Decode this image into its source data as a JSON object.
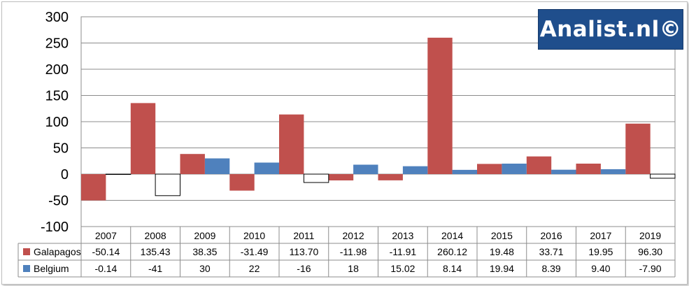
{
  "logo": {
    "text": "Analist.nl©"
  },
  "chart_data": {
    "type": "bar",
    "title": "",
    "xlabel": "",
    "ylabel": "",
    "categories": [
      "2007",
      "2008",
      "2009",
      "2010",
      "2011",
      "2012",
      "2013",
      "2014",
      "2015",
      "2016",
      "2017",
      "2019"
    ],
    "series": [
      {
        "name": "Galapagos",
        "color": "#c0504d",
        "values": [
          -50.14,
          135.43,
          38.35,
          -31.49,
          113.7,
          -11.98,
          -11.91,
          260.12,
          19.48,
          33.71,
          19.95,
          96.3
        ],
        "labels": [
          "-50.14",
          "135.43",
          "38.35",
          "-31.49",
          "113.70",
          "-11.98",
          "-11.91",
          "260.12",
          "19.48",
          "33.71",
          "19.95",
          "96.30"
        ]
      },
      {
        "name": "Belgium",
        "color": "#4f81bd",
        "negative_color": "#ffffff",
        "values": [
          -0.14,
          -41,
          30,
          22,
          -16,
          18,
          15.02,
          8.14,
          19.94,
          8.39,
          9.4,
          -7.9
        ],
        "labels": [
          "-0.14",
          "-41",
          "30",
          "22",
          "-16",
          "18",
          "15.02",
          "8.14",
          "19.94",
          "8.39",
          "9.40",
          "-7.90"
        ]
      }
    ],
    "ylim": [
      -100,
      300
    ],
    "yticks": [
      -100,
      -50,
      0,
      50,
      100,
      150,
      200,
      250,
      300
    ],
    "grid": true,
    "data_table": true
  }
}
